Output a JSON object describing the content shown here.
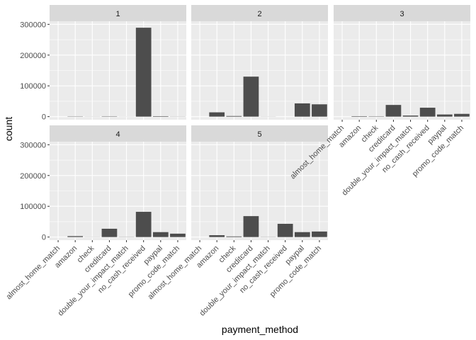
{
  "chart_data": {
    "type": "bar",
    "xlabel": "payment_method",
    "ylabel": "count",
    "categories": [
      "almost_home_match",
      "amazon",
      "check",
      "creditcard",
      "double_your_impact_match",
      "no_cash_received",
      "paypal",
      "promo_code_match"
    ],
    "ylim": [
      -10000,
      310000
    ],
    "yticks": [
      0,
      100000,
      200000,
      300000
    ],
    "ytick_labels": [
      "0",
      "100000",
      "200000",
      "300000"
    ],
    "grid": true,
    "panels": [
      {
        "facet": "1",
        "values": [
          0,
          800,
          300,
          1000,
          200,
          289000,
          1500,
          400
        ]
      },
      {
        "facet": "2",
        "values": [
          0,
          14000,
          2000,
          130000,
          300,
          0,
          43000,
          40000
        ]
      },
      {
        "facet": "3",
        "values": [
          0,
          1500,
          1000,
          38000,
          3500,
          29000,
          7000,
          9000
        ]
      },
      {
        "facet": "4",
        "values": [
          0,
          3000,
          300,
          27000,
          500,
          82000,
          16000,
          11000
        ]
      },
      {
        "facet": "5",
        "values": [
          0,
          6000,
          2000,
          68000,
          500,
          43000,
          16000,
          18000
        ]
      }
    ]
  }
}
